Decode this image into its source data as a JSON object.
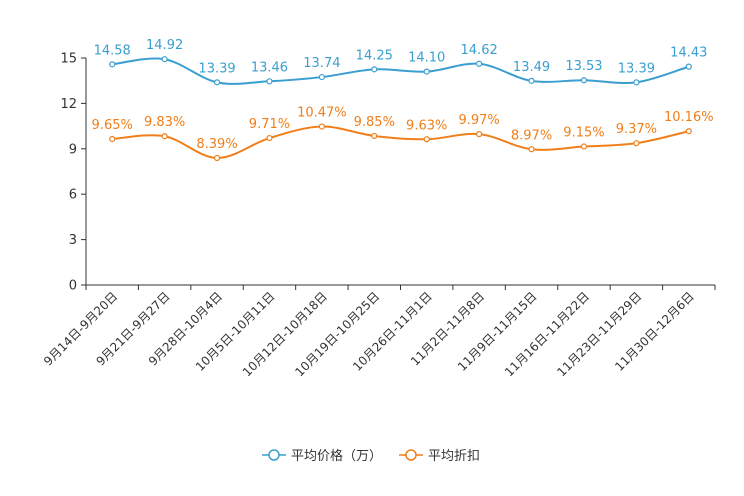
{
  "chart_data": {
    "type": "line",
    "categories": [
      "9月14日-9月20日",
      "9月21日-9月27日",
      "9月28日-10月4日",
      "10月5日-10月11日",
      "10月12日-10月18日",
      "10月19日-10月25日",
      "10月26日-11月1日",
      "11月2日-11月8日",
      "11月9日-11月15日",
      "11月16日-11月22日",
      "11月23日-11月29日",
      "11月30日-12月6日"
    ],
    "series": [
      {
        "name": "平均价格（万）",
        "color": "#3a9fd0",
        "values": [
          14.58,
          14.92,
          13.39,
          13.46,
          13.74,
          14.25,
          14.1,
          14.62,
          13.49,
          13.53,
          13.39,
          14.43
        ],
        "labels": [
          "14.58",
          "14.92",
          "13.39",
          "13.46",
          "13.74",
          "14.25",
          "14.10",
          "14.62",
          "13.49",
          "13.53",
          "13.39",
          "14.43"
        ]
      },
      {
        "name": "平均折扣",
        "color": "#f07f1a",
        "values": [
          9.65,
          9.83,
          8.39,
          9.71,
          10.47,
          9.85,
          9.63,
          9.97,
          8.97,
          9.15,
          9.37,
          10.16
        ],
        "labels": [
          "9.65%",
          "9.83%",
          "8.39%",
          "9.71%",
          "10.47%",
          "9.85%",
          "9.63%",
          "9.97%",
          "8.97%",
          "9.15%",
          "9.37%",
          "10.16%"
        ]
      }
    ],
    "yticks": [
      0,
      3,
      6,
      9,
      12,
      15
    ],
    "ylim": [
      0,
      15
    ],
    "title": "",
    "xlabel": "",
    "ylabel": "",
    "legend_position": "bottom-center"
  }
}
